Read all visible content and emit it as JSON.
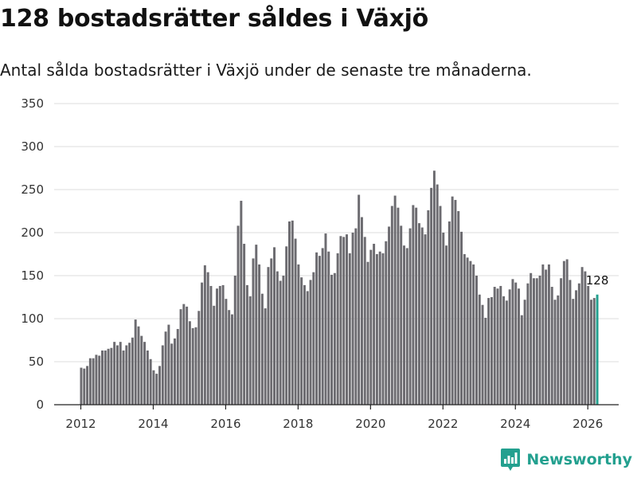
{
  "header": {
    "title": "128 bostadsrätter såldes i Växjö",
    "subtitle": "Antal sålda bostadsrätter i Växjö under de senaste tre månaderna."
  },
  "brand": {
    "name": "Newsworthy",
    "logo_icon": "bar-chart-logo-icon",
    "color": "#23a08f"
  },
  "colors": {
    "bar": "#6c6b70",
    "highlight": "#22a08f",
    "grid": "#dcdcdc"
  },
  "chart_data": {
    "type": "bar",
    "title": "128 bostadsrätter såldes i Växjö",
    "subtitle": "Antal sålda bostadsrätter i Växjö under de senaste tre månaderna.",
    "xlabel": "",
    "ylabel": "",
    "ylim": [
      0,
      350
    ],
    "yticks": [
      0,
      50,
      100,
      150,
      200,
      250,
      300,
      350
    ],
    "xticks": [
      "2012",
      "2014",
      "2016",
      "2018",
      "2020",
      "2022",
      "2024",
      "2026"
    ],
    "x_start": "2012-01",
    "grid": true,
    "highlight_last": true,
    "last_value_label": "128",
    "values": [
      43,
      42,
      45,
      54,
      54,
      58,
      57,
      63,
      63,
      65,
      66,
      73,
      69,
      73,
      63,
      69,
      72,
      78,
      99,
      91,
      80,
      73,
      63,
      53,
      40,
      36,
      45,
      69,
      85,
      93,
      71,
      77,
      88,
      111,
      117,
      114,
      97,
      89,
      90,
      109,
      142,
      162,
      154,
      138,
      115,
      135,
      138,
      139,
      123,
      110,
      105,
      150,
      208,
      237,
      187,
      139,
      126,
      170,
      186,
      163,
      129,
      112,
      160,
      170,
      183,
      155,
      144,
      150,
      184,
      213,
      214,
      193,
      163,
      148,
      139,
      132,
      145,
      154,
      177,
      173,
      182,
      199,
      178,
      151,
      153,
      176,
      196,
      195,
      198,
      176,
      200,
      205,
      244,
      218,
      195,
      166,
      180,
      187,
      175,
      178,
      176,
      190,
      207,
      231,
      243,
      229,
      208,
      185,
      182,
      205,
      232,
      229,
      211,
      206,
      198,
      226,
      252,
      272,
      256,
      231,
      200,
      185,
      213,
      242,
      238,
      225,
      201,
      175,
      171,
      167,
      163,
      150,
      128,
      116,
      101,
      124,
      125,
      137,
      135,
      138,
      126,
      121,
      134,
      146,
      142,
      135,
      104,
      122,
      141,
      153,
      147,
      147,
      150,
      163,
      157,
      163,
      137,
      122,
      127,
      147,
      167,
      169,
      145,
      123,
      133,
      141,
      160,
      155,
      138,
      122,
      124,
      128
    ]
  }
}
